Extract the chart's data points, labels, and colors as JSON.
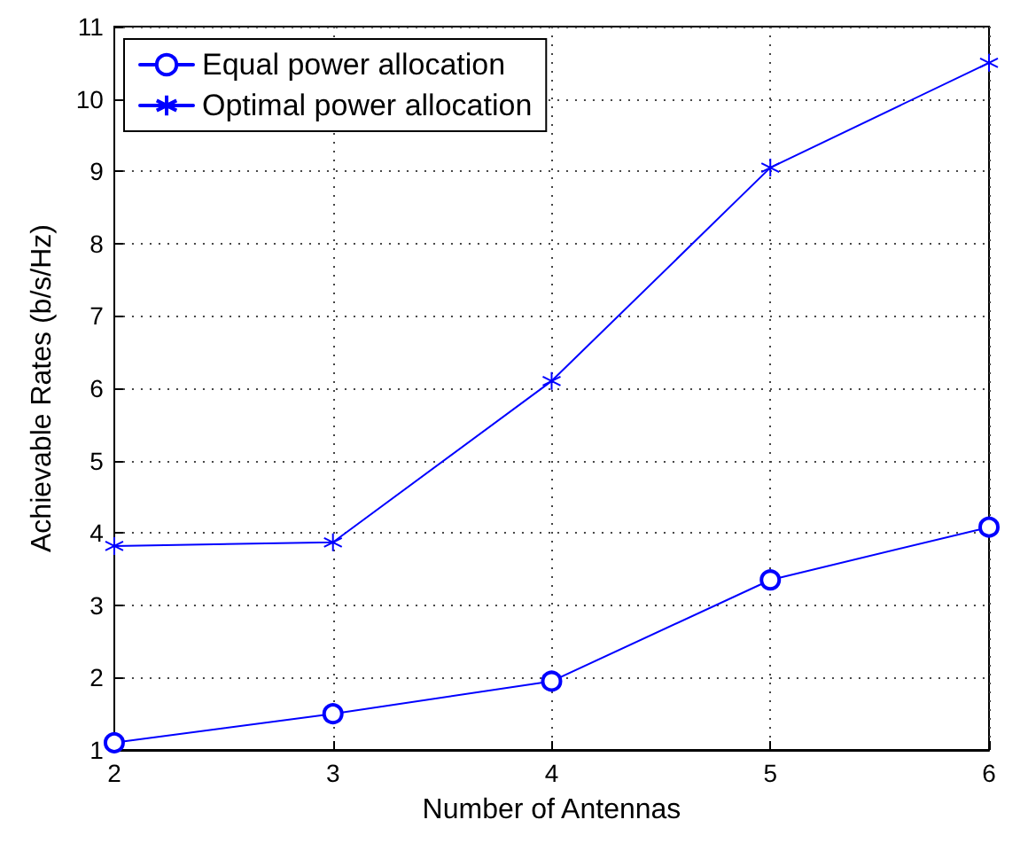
{
  "chart_data": {
    "type": "line",
    "xlabel": "Number of Antennas",
    "ylabel": "Achievable Rates (b/s/Hz)",
    "x": [
      2,
      3,
      4,
      5,
      6
    ],
    "xlim": [
      2,
      6
    ],
    "xticks": [
      2,
      3,
      4,
      5,
      6
    ],
    "ylim": [
      1,
      11
    ],
    "yticks": [
      1,
      2,
      3,
      4,
      5,
      6,
      7,
      8,
      9,
      10,
      11
    ],
    "grid": true,
    "legend": "top left",
    "line_style": "solid",
    "series": [
      {
        "name": "Equal power allocation",
        "color": "#0000ff",
        "marker": "circle",
        "values": [
          1.1,
          1.5,
          1.95,
          3.35,
          4.08
        ]
      },
      {
        "name": "Optimal power allocation",
        "color": "#0000ff",
        "marker": "cross",
        "values": [
          3.82,
          3.87,
          6.1,
          9.05,
          10.5
        ]
      }
    ]
  }
}
